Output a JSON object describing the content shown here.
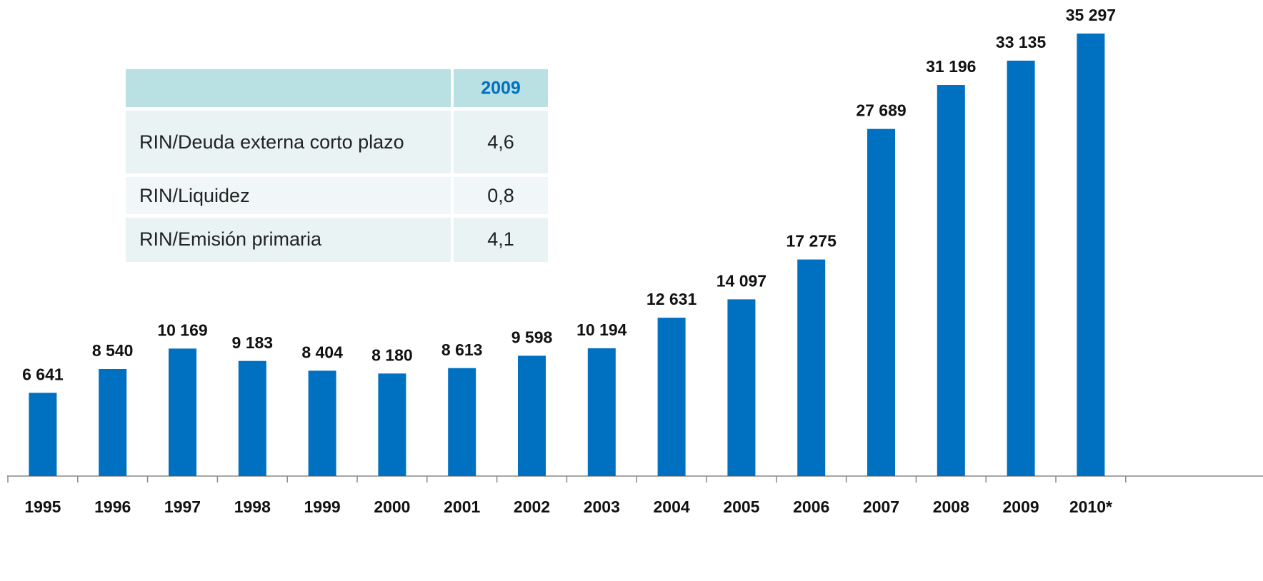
{
  "chart_data": {
    "type": "bar",
    "categories": [
      "1995",
      "1996",
      "1997",
      "1998",
      "1999",
      "2000",
      "2001",
      "2002",
      "2003",
      "2004",
      "2005",
      "2006",
      "2007",
      "2008",
      "2009",
      "2010*"
    ],
    "values": [
      6641,
      8540,
      10169,
      9183,
      8404,
      8180,
      8613,
      9598,
      10194,
      12631,
      14097,
      17275,
      27689,
      31196,
      33135,
      35297
    ],
    "value_labels": [
      "6 641",
      "8 540",
      "10 169",
      "9 183",
      "8 404",
      "8 180",
      "8 613",
      "9 598",
      "10 194",
      "12 631",
      "14 097",
      "17 275",
      "27 689",
      "31 196",
      "33 135",
      "35 297"
    ],
    "color": "#0070c0"
  },
  "table": {
    "header": "2009",
    "rows": [
      [
        "RIN/Deuda externa corto plazo",
        "4,6"
      ],
      [
        "RIN/Liquidez",
        "0,8"
      ],
      [
        "RIN/Emisión primaria",
        "4,1"
      ]
    ]
  }
}
